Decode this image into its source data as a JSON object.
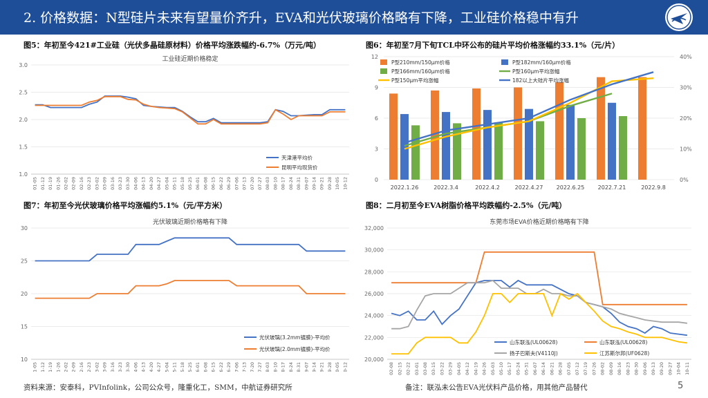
{
  "header": {
    "title": "2. 价格数据：N型硅片未来有望量价齐升，EVA和光伏玻璃价格略有下降，工业硅价格稳中有升"
  },
  "footer": {
    "source": "资料来源：安泰科，PVInfolink，公司公众号，隆重化工，SMM，中航证券研究所",
    "note": "备注：联泓未公告EVA光伏料产品价格，用其他产品替代",
    "page": "5"
  },
  "colors": {
    "header": "#1f4e99",
    "blue": "#4472c4",
    "orange": "#ed7d31",
    "green": "#70ad47",
    "gray": "#a5a5a5",
    "yellow": "#ffc000"
  },
  "chart_data": [
    {
      "id": "fig5",
      "type": "line",
      "fig_title": "图5：年初至今421#工业硅（光伏多晶硅原材料）价格平均涨跌幅约-6.7%（万元/吨）",
      "title": "工业硅近期价格稳定",
      "ylim": [
        1.0,
        3.0
      ],
      "yticks": [
        "1.0",
        "1.5",
        "2.0",
        "2.5",
        "3.0"
      ],
      "categories": [
        "01-05",
        "01-12",
        "01-19",
        "01-26",
        "02-02",
        "02-09",
        "02-16",
        "02-23",
        "03-02",
        "03-09",
        "03-16",
        "03-23",
        "03-30",
        "04-06",
        "04-13",
        "04-20",
        "04-27",
        "05-04",
        "05-11",
        "05-18",
        "05-25",
        "06-01",
        "06-08",
        "06-15",
        "06-22",
        "06-29",
        "07-06",
        "07-13",
        "07-20",
        "07-27",
        "08-03",
        "08-10",
        "08-17",
        "08-24",
        "08-31",
        "09-07",
        "09-14",
        "09-21",
        "09-28",
        "10-05",
        "10-12"
      ],
      "series": [
        {
          "name": "天津港平均价",
          "color": "#4472c4",
          "values": [
            2.27,
            2.27,
            2.22,
            2.22,
            2.22,
            2.22,
            2.22,
            2.28,
            2.32,
            2.43,
            2.43,
            2.43,
            2.41,
            2.38,
            2.26,
            2.24,
            2.23,
            2.22,
            2.22,
            2.15,
            2.05,
            1.96,
            1.96,
            2.02,
            1.94,
            1.94,
            1.94,
            1.94,
            1.94,
            1.94,
            1.96,
            2.18,
            2.15,
            2.07,
            2.07,
            2.08,
            2.09,
            2.09,
            2.18,
            2.18,
            2.18
          ]
        },
        {
          "name": "昆明平均现货价",
          "color": "#ed7d31",
          "values": [
            2.26,
            2.26,
            2.26,
            2.26,
            2.26,
            2.26,
            2.26,
            2.32,
            2.35,
            2.42,
            2.42,
            2.42,
            2.37,
            2.36,
            2.28,
            2.24,
            2.22,
            2.21,
            2.2,
            2.14,
            2.03,
            1.92,
            1.92,
            2.0,
            1.92,
            1.92,
            1.92,
            1.92,
            1.92,
            1.92,
            1.94,
            2.18,
            2.1,
            2.0,
            2.07,
            2.07,
            2.07,
            2.07,
            2.14,
            2.14,
            2.14
          ]
        }
      ]
    },
    {
      "id": "fig6",
      "type": "bar",
      "fig_title": "图6：年初至7月下旬TCL中环公布的硅片平均价格涨幅约33.1%（元/片）",
      "ylim": [
        0,
        12
      ],
      "yticks": [
        "0",
        "3",
        "6",
        "9",
        "12"
      ],
      "y2lim": [
        0,
        40
      ],
      "y2ticks": [
        "0%",
        "10%",
        "20%",
        "30%",
        "40%"
      ],
      "categories": [
        "2022.1.26",
        "2022.3.4",
        "2022.4.2",
        "2022.4.27",
        "2022.6.25",
        "2022.7.21",
        "2022.9.8"
      ],
      "series": [
        {
          "name": "P型210mm/150μm价格",
          "color": "#ed7d31",
          "kind": "bar",
          "values": [
            8.4,
            8.7,
            8.9,
            9.0,
            9.5,
            10.0,
            10.0
          ]
        },
        {
          "name": "P型182mm/160μm价格",
          "color": "#4472c4",
          "kind": "bar",
          "values": [
            6.4,
            6.6,
            6.8,
            6.9,
            7.3,
            7.5,
            null
          ]
        },
        {
          "name": "P型166mm/160μm价格",
          "color": "#70ad47",
          "kind": "bar",
          "values": [
            5.3,
            5.5,
            5.6,
            5.7,
            6.0,
            6.2,
            null
          ]
        },
        {
          "name": "P型160μm平均涨幅",
          "color": "#70ad47",
          "kind": "line",
          "values": [
            11,
            15,
            17,
            19,
            24,
            28,
            null
          ]
        },
        {
          "name": "P型150μm平均涨幅",
          "color": "#ffc000",
          "kind": "line",
          "values": [
            10,
            14,
            17,
            19,
            25,
            32,
            33
          ]
        },
        {
          "name": "182以上大硅片平均涨幅",
          "color": "#4472c4",
          "kind": "line",
          "values": [
            12,
            16,
            18,
            20,
            26,
            31,
            35
          ]
        }
      ]
    },
    {
      "id": "fig7",
      "type": "line",
      "fig_title": "图7：年初至今光伏玻璃价格平均涨幅约5.1%（元/平方米）",
      "title": "光伏玻璃近期价格略有下降",
      "ylim": [
        10,
        30
      ],
      "yticks": [
        "10",
        "15",
        "20",
        "25",
        "30"
      ],
      "categories": [
        "01-05",
        "01-12",
        "01-19",
        "01-26",
        "02-02",
        "02-09",
        "02-16",
        "02-23",
        "03-02",
        "03-09",
        "03-16",
        "03-23",
        "03-30",
        "04-06",
        "04-13",
        "04-20",
        "04-27",
        "05-04",
        "05-11",
        "05-18",
        "05-25",
        "06-01",
        "06-08",
        "06-15",
        "06-22",
        "06-29",
        "07-06",
        "07-13",
        "07-20",
        "07-27",
        "08-03",
        "08-10",
        "08-17",
        "08-24",
        "08-31",
        "09-07",
        "09-14",
        "09-21",
        "09-28",
        "10-05",
        "10-12"
      ],
      "series": [
        {
          "name": "光伏玻璃(3.2mm镀膜)-平均价",
          "color": "#4472c4",
          "values": [
            25,
            25,
            25,
            25,
            25,
            25,
            25,
            25,
            26,
            26,
            26,
            26,
            26,
            27.5,
            27.5,
            27.5,
            27.5,
            28,
            28.5,
            28.5,
            28.5,
            28.5,
            28.5,
            28.5,
            28.5,
            28.5,
            27.5,
            27.5,
            27.5,
            27.5,
            27.5,
            27.5,
            27.5,
            27.5,
            27.5,
            26.5,
            26.5,
            26.5,
            26.5,
            26.5,
            26.5
          ]
        },
        {
          "name": "光伏玻璃(2.0mm镀膜)-平均价",
          "color": "#ed7d31",
          "values": [
            19.3,
            19.3,
            19.3,
            19.3,
            19.3,
            19.3,
            19.3,
            19.3,
            20,
            20,
            20,
            20,
            20,
            21.2,
            21.2,
            21.2,
            21.2,
            21.5,
            22,
            22,
            22,
            22,
            22,
            22,
            22,
            22,
            21.2,
            21.2,
            21.2,
            21.2,
            21.2,
            21.2,
            21.2,
            21.2,
            21.2,
            20,
            20,
            20,
            20,
            20,
            20
          ]
        }
      ]
    },
    {
      "id": "fig8",
      "type": "line",
      "fig_title": "图8：二月初至今EVA树脂价格平均跌幅约-2.5%（元/吨）",
      "title": "东莞市场EVA价格近期价格略有下降",
      "ylim": [
        20000,
        32000
      ],
      "yticks": [
        "20,000",
        "22,000",
        "24,000",
        "26,000",
        "28,000",
        "30,000",
        "32,000"
      ],
      "categories": [
        "02-08",
        "02-15",
        "02-22",
        "03-01",
        "03-08",
        "03-15",
        "03-22",
        "03-29",
        "04-05",
        "04-12",
        "04-19",
        "04-26",
        "05-03",
        "05-10",
        "05-17",
        "05-24",
        "05-31",
        "06-07",
        "06-14",
        "06-21",
        "06-28",
        "07-05",
        "07-12",
        "07-19",
        "07-26",
        "08-02",
        "08-09",
        "08-16",
        "08-23",
        "08-30",
        "09-06",
        "09-13",
        "09-20",
        "09-27",
        "10-04",
        "10-11"
      ],
      "series": [
        {
          "name": "山东联泓(UL00628)",
          "color": "#4472c4",
          "values": [
            24200,
            24000,
            24400,
            23600,
            23600,
            24400,
            23200,
            24000,
            24600,
            25800,
            27000,
            27200,
            27200,
            27200,
            26600,
            27200,
            26800,
            26800,
            26800,
            26800,
            26400,
            26000,
            25800,
            25200,
            25000,
            24800,
            24200,
            23400,
            23000,
            22800,
            22400,
            23000,
            22800,
            22400,
            22300,
            22200
          ]
        },
        {
          "name": "山东联泓(UL00628)",
          "color": "#ed7d31",
          "values": [
            27000,
            27000,
            27000,
            27000,
            27000,
            27000,
            27000,
            27000,
            27000,
            27000,
            27000,
            29800,
            29800,
            29800,
            29800,
            29800,
            29800,
            29800,
            29800,
            29800,
            29800,
            29800,
            29800,
            29800,
            29800,
            25000,
            25000,
            25000,
            25000,
            25000,
            25000,
            25000,
            25000,
            25000,
            25000,
            25000
          ]
        },
        {
          "name": "扬子巴斯夫(V4110J)",
          "color": "#a5a5a5",
          "values": [
            22800,
            22800,
            23000,
            24500,
            25800,
            26000,
            26000,
            26000,
            26500,
            27000,
            27000,
            27000,
            27200,
            26500,
            26500,
            26500,
            26000,
            26000,
            26400,
            26000,
            26000,
            25800,
            25800,
            25200,
            25000,
            24800,
            24600,
            24200,
            24000,
            23800,
            23600,
            23500,
            23400,
            23400,
            23400,
            23300
          ]
        },
        {
          "name": "江苏斯尔邦(UF0628)",
          "color": "#ffc000",
          "values": [
            20500,
            20500,
            20500,
            21500,
            22000,
            22000,
            22000,
            22000,
            21500,
            21500,
            22500,
            24000,
            26000,
            26000,
            25200,
            26000,
            26000,
            26000,
            26000,
            24000,
            26000,
            25500,
            26000,
            25200,
            24400,
            23500,
            23000,
            22800,
            22500,
            22300,
            22000,
            22000,
            22000,
            21800,
            21600,
            21500
          ]
        }
      ]
    }
  ]
}
